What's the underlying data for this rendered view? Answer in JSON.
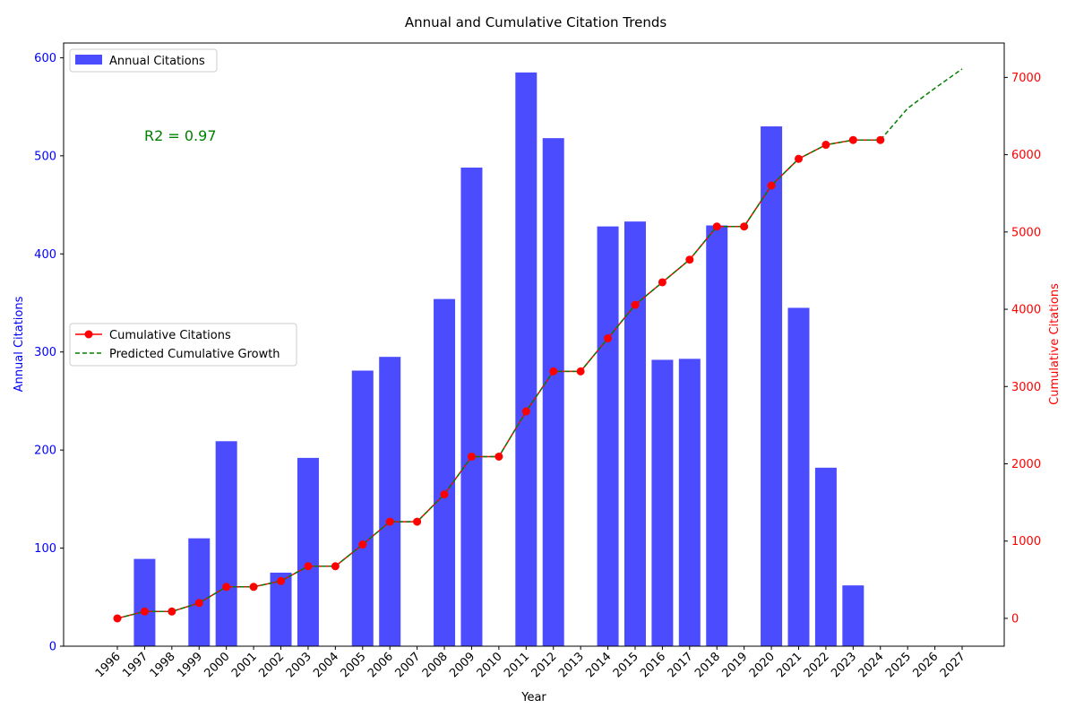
{
  "chart_data": {
    "type": "bar",
    "title": "Annual and Cumulative Citation Trends",
    "xlabel": "Year",
    "ylabel_left": "Annual Citations",
    "ylabel_right": "Cumulative Citations",
    "ylim_left": [
      0,
      615
    ],
    "ylim_right": [
      -360,
      7445
    ],
    "yticks_left": [
      0,
      100,
      200,
      300,
      400,
      500,
      600
    ],
    "yticks_right": [
      0,
      1000,
      2000,
      3000,
      4000,
      5000,
      6000,
      7000
    ],
    "categories": [
      "1996",
      "1997",
      "1998",
      "1999",
      "2000",
      "2001",
      "2002",
      "2003",
      "2004",
      "2005",
      "2006",
      "2007",
      "2008",
      "2009",
      "2010",
      "2011",
      "2012",
      "2013",
      "2014",
      "2015",
      "2016",
      "2017",
      "2018",
      "2019",
      "2020",
      "2021",
      "2022",
      "2023",
      "2024",
      "2025",
      "2026",
      "2027"
    ],
    "series": [
      {
        "name": "Annual Citations",
        "kind": "bar",
        "axis": "left",
        "color": "#0000ff",
        "values": [
          0,
          89,
          0,
          110,
          209,
          0,
          75,
          192,
          0,
          281,
          295,
          0,
          354,
          488,
          0,
          585,
          518,
          0,
          428,
          433,
          292,
          293,
          429,
          0,
          530,
          345,
          182,
          62,
          0,
          null,
          null,
          null
        ]
      },
      {
        "name": "Cumulative Citations",
        "kind": "line",
        "axis": "right",
        "color": "#ff0000",
        "marker": "circle",
        "values": [
          0,
          89,
          89,
          199,
          408,
          408,
          483,
          675,
          675,
          956,
          1251,
          1251,
          1605,
          2093,
          2093,
          2678,
          3196,
          3196,
          3624,
          4057,
          4349,
          4642,
          5071,
          5071,
          5601,
          5946,
          6128,
          6190,
          6190,
          null,
          null,
          null
        ]
      },
      {
        "name": "Predicted Cumulative Growth",
        "kind": "line",
        "axis": "right",
        "color": "#008000",
        "dashed": true,
        "values": [
          0,
          89,
          89,
          199,
          408,
          408,
          483,
          675,
          675,
          956,
          1251,
          1251,
          1605,
          2093,
          2093,
          2678,
          3196,
          3196,
          3624,
          4057,
          4349,
          4642,
          5071,
          5071,
          5601,
          5946,
          6128,
          6190,
          6190,
          6600,
          6860,
          7110
        ]
      }
    ],
    "annotation": {
      "text": "R2 = 0.97",
      "color": "#008000"
    },
    "legend_top": "top-left",
    "legend_lines": "center-left",
    "grid": false
  }
}
